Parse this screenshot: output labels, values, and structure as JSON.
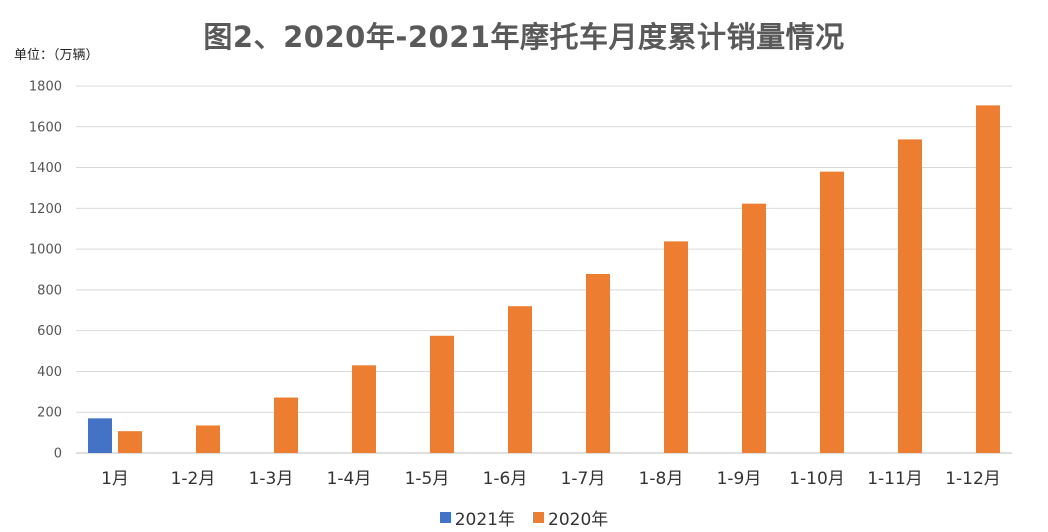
{
  "chart_data": {
    "type": "bar",
    "title": "图2、2020年-2021年摩托车月度累计销量情况",
    "unit_label": "单位：（万辆）",
    "categories": [
      "1月",
      "1-2月",
      "1-3月",
      "1-4月",
      "1-5月",
      "1-6月",
      "1-7月",
      "1-8月",
      "1-9月",
      "1-10月",
      "1-11月",
      "1-12月"
    ],
    "series": [
      {
        "name": "2021年",
        "color": "#4472c4",
        "values": [
          170,
          null,
          null,
          null,
          null,
          null,
          null,
          null,
          null,
          null,
          null,
          null
        ]
      },
      {
        "name": "2020年",
        "color": "#ed7d31",
        "values": [
          107,
          135,
          272,
          430,
          575,
          720,
          878,
          1038,
          1223,
          1380,
          1538,
          1705
        ]
      }
    ],
    "ylim": [
      0,
      1800
    ],
    "yticks": [
      "0",
      "200",
      "400",
      "600",
      "800",
      "1000",
      "1200",
      "1400",
      "1600",
      "1800"
    ],
    "grid": true,
    "legend_position": "bottom"
  }
}
